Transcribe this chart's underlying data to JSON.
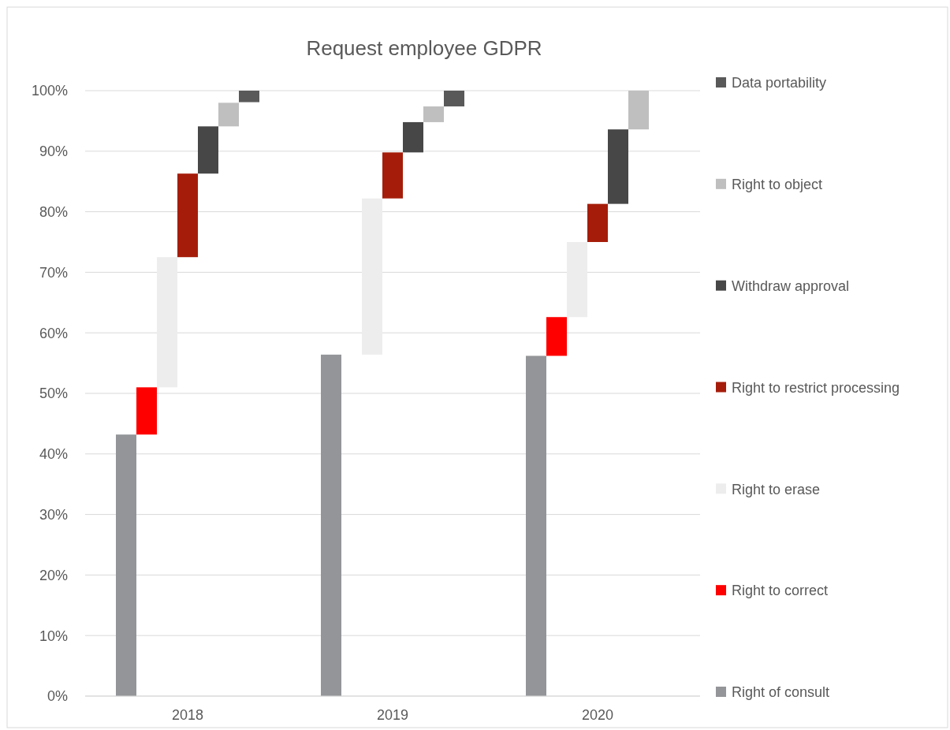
{
  "chart_data": {
    "type": "bar",
    "title": "Request employee GDPR",
    "categories": [
      "2018",
      "2019",
      "2020"
    ],
    "series": [
      {
        "name": "Right of consult",
        "color": "#939598",
        "values": [
          43.2,
          56.4,
          56.2
        ],
        "base": [
          0,
          0,
          0
        ]
      },
      {
        "name": "Right to correct",
        "color": "#ff0000",
        "values": [
          7.8,
          null,
          6.4
        ],
        "base": [
          43.2,
          null,
          56.2
        ]
      },
      {
        "name": "Right to erase",
        "color": "#ededed",
        "values": [
          21.5,
          25.8,
          12.4
        ],
        "base": [
          51,
          56.4,
          62.6
        ]
      },
      {
        "name": "Right to restrict processing",
        "color": "#a51d0a",
        "values": [
          13.8,
          7.6,
          6.3
        ],
        "base": [
          72.5,
          82.2,
          75
        ]
      },
      {
        "name": "Withdraw approval",
        "color": "#474747",
        "values": [
          7.8,
          5,
          12.3
        ],
        "base": [
          86.3,
          89.8,
          81.3
        ]
      },
      {
        "name": "Right to object",
        "color": "#bfbfbf",
        "values": [
          3.9,
          2.6,
          6.4
        ],
        "base": [
          94.1,
          94.8,
          93.6
        ]
      },
      {
        "name": "Data portability",
        "color": "#595959",
        "values": [
          1.9,
          2.6,
          null
        ],
        "base": [
          98.1,
          97.4,
          null
        ]
      }
    ],
    "ylim": [
      0,
      100
    ],
    "yticks": [
      {
        "value": 0,
        "label": "0%"
      },
      {
        "value": 10,
        "label": "10%"
      },
      {
        "value": 20,
        "label": "20%"
      },
      {
        "value": 30,
        "label": "30%"
      },
      {
        "value": 40,
        "label": "40%"
      },
      {
        "value": 50,
        "label": "50%"
      },
      {
        "value": 60,
        "label": "60%"
      },
      {
        "value": 70,
        "label": "70%"
      },
      {
        "value": 80,
        "label": "80%"
      },
      {
        "value": 90,
        "label": "90%"
      },
      {
        "value": 100,
        "label": "100%"
      }
    ],
    "grid": "y",
    "legend": "right"
  }
}
